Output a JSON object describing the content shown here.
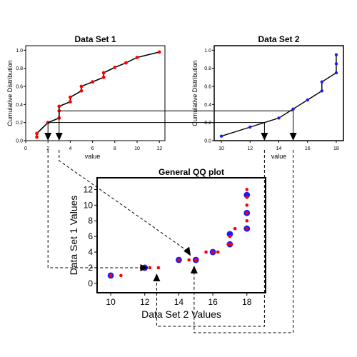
{
  "chart_data": [
    {
      "type": "line",
      "title": "Data Set 1",
      "xlabel": "value",
      "ylabel": "Cumulative Distribution",
      "xlim": [
        0,
        12.5
      ],
      "ylim": [
        0,
        1.05
      ],
      "xticks": [
        0,
        2,
        4,
        6,
        8,
        10,
        12
      ],
      "yticks": [
        0.0,
        0.2,
        0.4,
        0.6,
        0.8,
        1.0
      ],
      "ytick_labels": [
        "0.0",
        "0.2",
        "0.4",
        "0.6",
        "0.8",
        "1.0"
      ],
      "points": [
        {
          "x": 1,
          "y": 0.04
        },
        {
          "x": 1,
          "y": 0.08
        },
        {
          "x": 2,
          "y": 0.2
        },
        {
          "x": 3,
          "y": 0.25
        },
        {
          "x": 3,
          "y": 0.33
        },
        {
          "x": 3,
          "y": 0.38
        },
        {
          "x": 4,
          "y": 0.43
        },
        {
          "x": 4,
          "y": 0.48
        },
        {
          "x": 5,
          "y": 0.55
        },
        {
          "x": 5,
          "y": 0.6
        },
        {
          "x": 6,
          "y": 0.65
        },
        {
          "x": 7,
          "y": 0.7
        },
        {
          "x": 7,
          "y": 0.75
        },
        {
          "x": 8,
          "y": 0.81
        },
        {
          "x": 9,
          "y": 0.86
        },
        {
          "x": 10,
          "y": 0.92
        },
        {
          "x": 12,
          "y": 0.98
        }
      ],
      "line_color": "#000000",
      "point_color": "#ff0000",
      "grid": false
    },
    {
      "type": "line",
      "title": "Data Set 2",
      "xlabel": "value",
      "ylabel": "Cumulative Distribution",
      "xlim": [
        9.5,
        18.5
      ],
      "ylim": [
        0,
        1.05
      ],
      "xticks": [
        10,
        12,
        14,
        16,
        18
      ],
      "yticks": [
        0.0,
        0.2,
        0.4,
        0.6,
        0.8,
        1.0
      ],
      "ytick_labels": [
        "0.0",
        "0.2",
        "0.4",
        "0.6",
        "0.8",
        "1.0"
      ],
      "points": [
        {
          "x": 10,
          "y": 0.05
        },
        {
          "x": 12,
          "y": 0.15
        },
        {
          "x": 14,
          "y": 0.25
        },
        {
          "x": 15,
          "y": 0.35
        },
        {
          "x": 16,
          "y": 0.45
        },
        {
          "x": 17,
          "y": 0.55
        },
        {
          "x": 17,
          "y": 0.65
        },
        {
          "x": 18,
          "y": 0.75
        },
        {
          "x": 18,
          "y": 0.85
        },
        {
          "x": 18,
          "y": 0.95
        }
      ],
      "line_color": "#000000",
      "point_color": "#1a1aff",
      "grid": false
    },
    {
      "type": "scatter",
      "title": "General QQ plot",
      "xlabel": "Data Set 2 Values",
      "ylabel": "Data Set 1 Values",
      "xlim": [
        9.2,
        19.1
      ],
      "ylim": [
        -1.2,
        13.5
      ],
      "xticks": [
        10,
        12,
        14,
        16,
        18
      ],
      "yticks": [
        0,
        2,
        4,
        6,
        8,
        10,
        12
      ],
      "series": [
        {
          "color": "#1a1aff",
          "points": [
            {
              "x": 10,
              "y": 1
            },
            {
              "x": 12,
              "y": 2
            },
            {
              "x": 14,
              "y": 3
            },
            {
              "x": 15,
              "y": 3
            },
            {
              "x": 16,
              "y": 4
            },
            {
              "x": 17,
              "y": 5
            },
            {
              "x": 17,
              "y": 6.3
            },
            {
              "x": 18,
              "y": 7
            },
            {
              "x": 18,
              "y": 9
            },
            {
              "x": 18,
              "y": 11.3
            }
          ]
        },
        {
          "color": "#ff0000",
          "points": [
            {
              "x": 10,
              "y": 1
            },
            {
              "x": 10.6,
              "y": 1
            },
            {
              "x": 11.8,
              "y": 2
            },
            {
              "x": 12.3,
              "y": 2
            },
            {
              "x": 12.8,
              "y": 2
            },
            {
              "x": 14,
              "y": 3
            },
            {
              "x": 14.6,
              "y": 3
            },
            {
              "x": 15,
              "y": 3
            },
            {
              "x": 15.6,
              "y": 4
            },
            {
              "x": 16,
              "y": 4
            },
            {
              "x": 16.3,
              "y": 4
            },
            {
              "x": 16.9,
              "y": 5
            },
            {
              "x": 17.1,
              "y": 5
            },
            {
              "x": 17,
              "y": 6
            },
            {
              "x": 17.3,
              "y": 7
            },
            {
              "x": 18,
              "y": 7
            },
            {
              "x": 18,
              "y": 8
            },
            {
              "x": 18,
              "y": 9
            },
            {
              "x": 18,
              "y": 10
            },
            {
              "x": 18,
              "y": 11
            },
            {
              "x": 18,
              "y": 12
            }
          ]
        }
      ],
      "grid": false
    }
  ]
}
